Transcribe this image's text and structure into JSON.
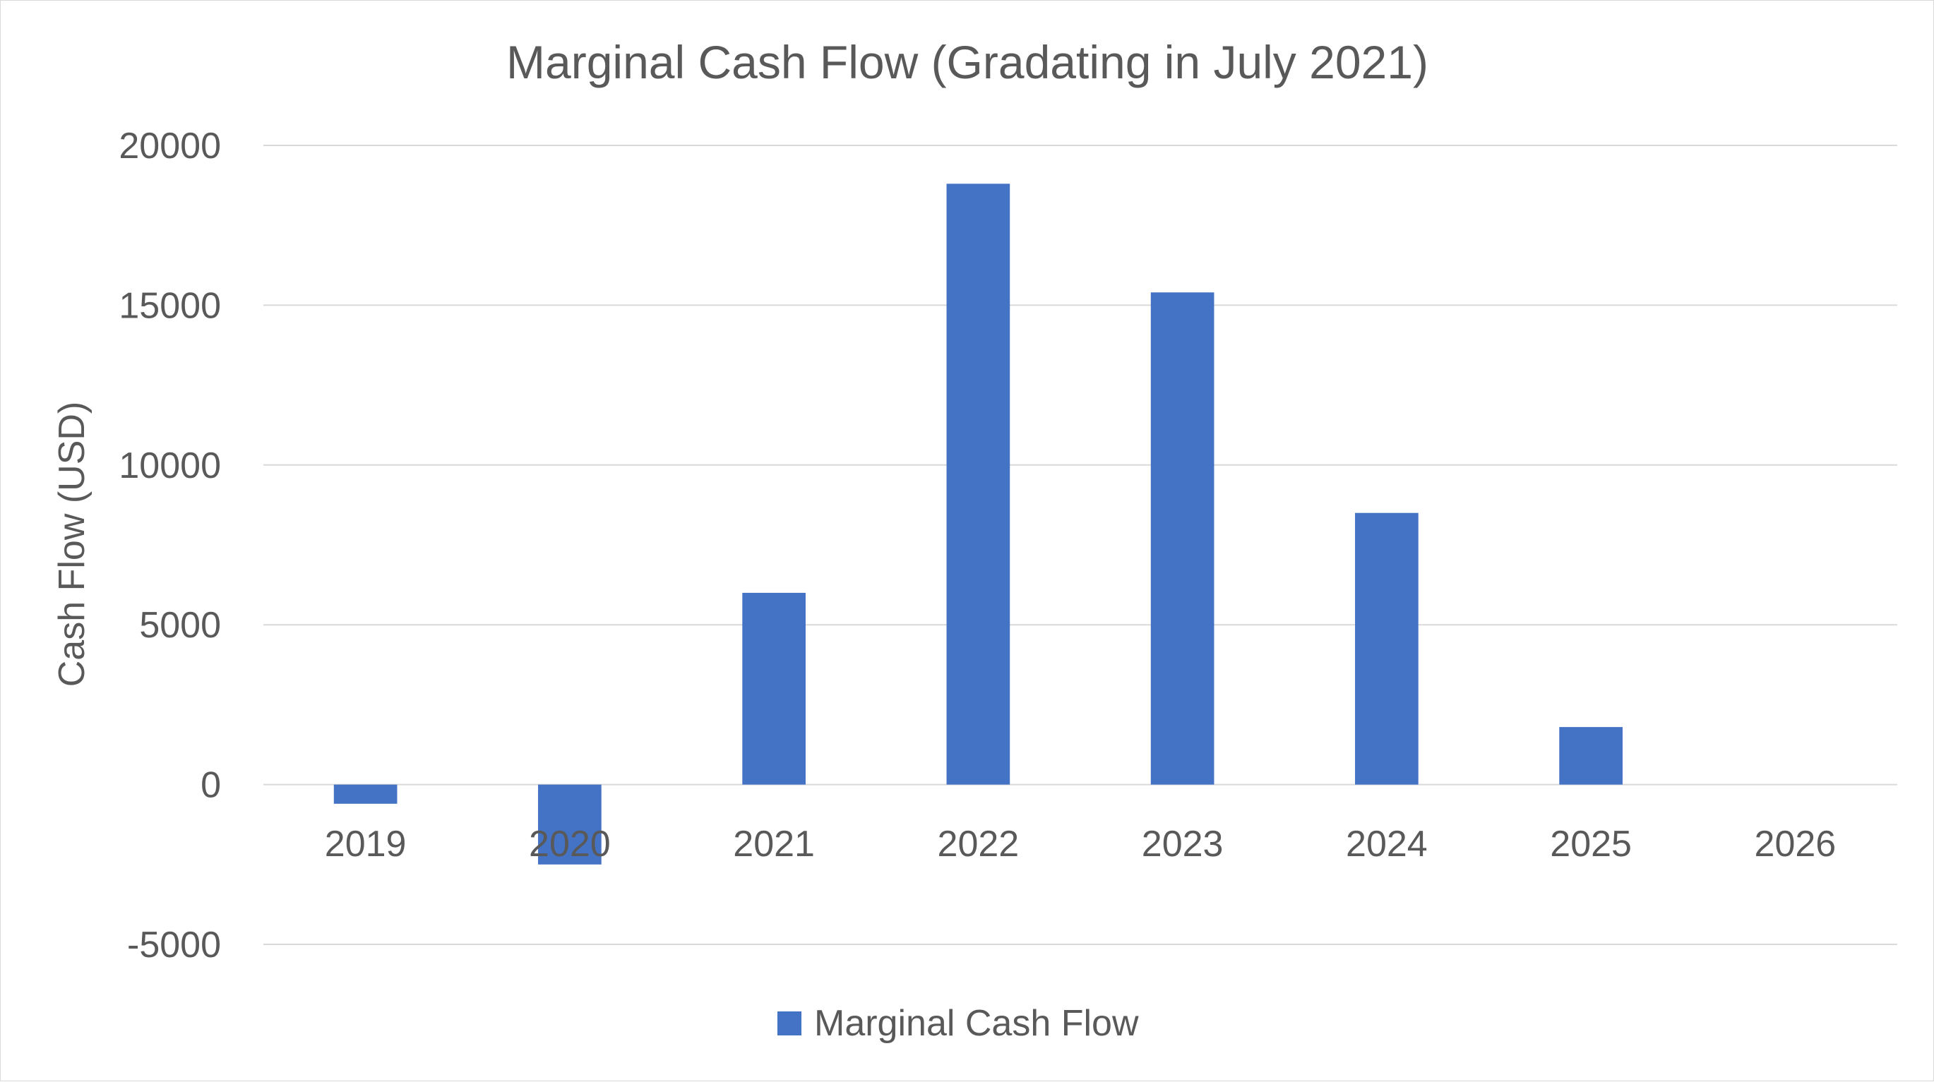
{
  "chart_data": {
    "type": "bar",
    "title": "Marginal Cash Flow (Gradating in July 2021)",
    "xlabel": "",
    "ylabel": "Cash Flow (USD)",
    "categories": [
      "2019",
      "2020",
      "2021",
      "2022",
      "2023",
      "2024",
      "2025",
      "2026"
    ],
    "series": [
      {
        "name": "Marginal Cash Flow",
        "values": [
          -600,
          -2500,
          6000,
          18800,
          15400,
          8500,
          1800,
          0
        ]
      }
    ],
    "ylim": [
      -5000,
      20000
    ],
    "yticks": [
      "-5000",
      "0",
      "5000",
      "10000",
      "15000",
      "20000"
    ],
    "grid": true,
    "legend_position": "bottom",
    "colors": {
      "bar": "#4472c4",
      "grid": "#d9d9d9",
      "text": "#595959"
    }
  }
}
